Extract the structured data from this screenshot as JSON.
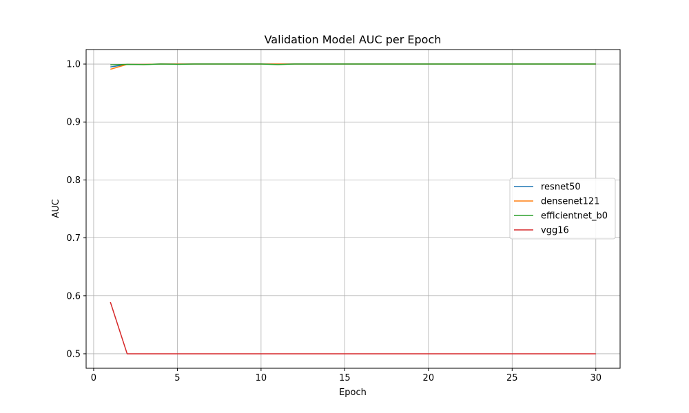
{
  "chart_data": {
    "type": "line",
    "title": "Validation Model AUC per Epoch",
    "xlabel": "Epoch",
    "ylabel": "AUC",
    "xlim": [
      -0.45,
      31.45
    ],
    "ylim": [
      0.475,
      1.025
    ],
    "xticks": [
      0,
      5,
      10,
      15,
      20,
      25,
      30
    ],
    "yticks": [
      0.5,
      0.6,
      0.7,
      0.8,
      0.9,
      1.0
    ],
    "xtick_labels": [
      "0",
      "5",
      "10",
      "15",
      "20",
      "25",
      "30"
    ],
    "ytick_labels": [
      "0.5",
      "0.6",
      "0.7",
      "0.8",
      "0.9",
      "1.0"
    ],
    "grid": true,
    "legend_position": "center-right",
    "x": [
      1,
      2,
      3,
      4,
      5,
      6,
      7,
      8,
      9,
      10,
      11,
      12,
      13,
      14,
      15,
      16,
      17,
      18,
      19,
      20,
      21,
      22,
      23,
      24,
      25,
      26,
      27,
      28,
      29,
      30
    ],
    "series": [
      {
        "name": "resnet50",
        "color": "#1f77b4",
        "values": [
          0.995,
          0.9995,
          0.9995,
          1.0,
          1.0,
          1.0,
          1.0,
          1.0,
          1.0,
          1.0,
          1.0,
          1.0,
          1.0,
          1.0,
          1.0,
          1.0,
          1.0,
          1.0,
          1.0,
          1.0,
          1.0,
          1.0,
          1.0,
          1.0,
          1.0,
          1.0,
          1.0,
          1.0,
          1.0,
          1.0
        ]
      },
      {
        "name": "densenet121",
        "color": "#ff7f0e",
        "values": [
          0.991,
          0.9995,
          0.9995,
          1.0,
          1.0,
          1.0,
          1.0,
          1.0,
          1.0,
          1.0,
          1.0,
          1.0,
          1.0,
          1.0,
          1.0,
          1.0,
          1.0,
          1.0,
          1.0,
          1.0,
          1.0,
          1.0,
          1.0,
          1.0,
          1.0,
          1.0,
          1.0,
          1.0,
          1.0,
          1.0
        ]
      },
      {
        "name": "efficientnet_b0",
        "color": "#2ca02c",
        "values": [
          0.9985,
          0.9995,
          0.999,
          1.0,
          0.9995,
          1.0,
          1.0,
          1.0,
          1.0,
          1.0,
          0.999,
          1.0,
          1.0,
          1.0,
          1.0,
          1.0,
          1.0,
          1.0,
          1.0,
          1.0,
          1.0,
          1.0,
          1.0,
          1.0,
          1.0,
          1.0,
          1.0,
          1.0,
          1.0,
          1.0
        ]
      },
      {
        "name": "vgg16",
        "color": "#d62728",
        "values": [
          0.589,
          0.5,
          0.5,
          0.5,
          0.5,
          0.5,
          0.5,
          0.5,
          0.5,
          0.5,
          0.5,
          0.5,
          0.5,
          0.5,
          0.5,
          0.5,
          0.5,
          0.5,
          0.5,
          0.5,
          0.5,
          0.5,
          0.5,
          0.5,
          0.5,
          0.5,
          0.5,
          0.5,
          0.5,
          0.5
        ]
      }
    ]
  }
}
